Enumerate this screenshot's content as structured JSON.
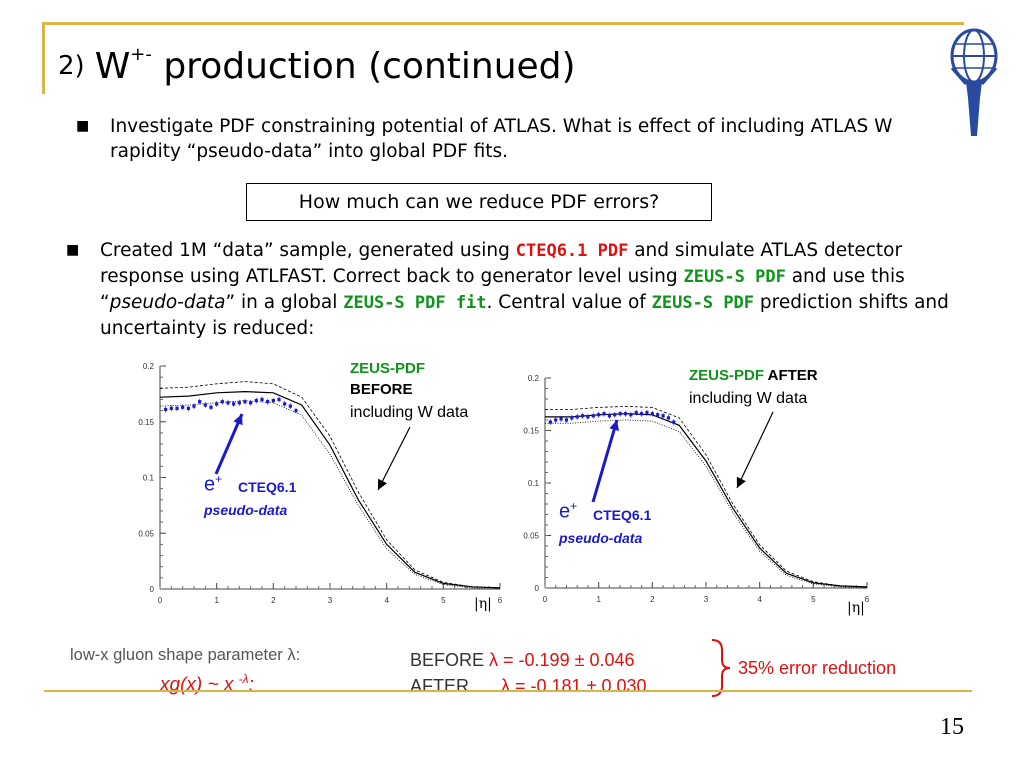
{
  "title": {
    "number": "2)",
    "main": "W",
    "superscript": "+-",
    "rest": "production (continued)"
  },
  "bullets": [
    {
      "text": "Investigate PDF constraining potential of ATLAS. What is effect of including ATLAS W rapidity “pseudo-data” into global PDF fits."
    },
    {
      "parts": {
        "p1": "Created 1M “data” sample, generated using ",
        "cteq": "CTEQ6.1 PDF",
        "p2": " and simulate ATLAS detector response using ATLFAST. Correct back to generator level using ",
        "zeus1": "ZEUS-S PDF",
        "p3": " and use this “",
        "pseudo": "pseudo-data",
        "p4": "”  in a global ",
        "zeus2": "ZEUS-S PDF fit",
        "p5": ".  Central value of ",
        "zeus3": "ZEUS-S PDF",
        "p6": " prediction shifts and uncertainty is reduced:"
      }
    }
  ],
  "question": "How much can we reduce PDF errors?",
  "plot_left": {
    "ann_zeus": "ZEUS-PDF",
    "ann_state": "BEFORE",
    "ann_incl": "including W data",
    "ann_e": "e",
    "ann_e_sup": "+",
    "ann_cteq": "CTEQ6.1",
    "ann_pseudo": "pseudo-data",
    "xlabel": "|η|",
    "yticks": [
      "0",
      "0.05",
      "0.1",
      "0.15",
      "0.2"
    ],
    "xticks": [
      "0",
      "1",
      "2",
      "3",
      "4",
      "5",
      "6"
    ]
  },
  "plot_right": {
    "ann_zeus": "ZEUS-PDF",
    "ann_state": "AFTER",
    "ann_incl": "including W data",
    "ann_e": "e",
    "ann_e_sup": "+",
    "ann_cteq": "CTEQ6.1",
    "ann_pseudo": "pseudo-data",
    "xlabel": "|η|",
    "yticks": [
      "0",
      "0.05",
      "0.1",
      "0.15",
      "0.2"
    ],
    "xticks": [
      "0",
      "1",
      "2",
      "3",
      "4",
      "5",
      "6"
    ]
  },
  "chart_data": [
    {
      "type": "line",
      "xlim": [
        0,
        6
      ],
      "ylim": [
        0,
        0.2
      ],
      "x": [
        0,
        0.5,
        1,
        1.5,
        2,
        2.5,
        3,
        3.5,
        4,
        4.5,
        5,
        5.5,
        6
      ],
      "series": [
        {
          "values": [
            0.172,
            0.173,
            0.176,
            0.177,
            0.176,
            0.165,
            0.129,
            0.08,
            0.04,
            0.015,
            0.005,
            0.002,
            0.001
          ]
        },
        {
          "values": [
            0.164,
            0.165,
            0.167,
            0.169,
            0.167,
            0.156,
            0.121,
            0.075,
            0.036,
            0.013,
            0.004,
            0.001,
            0.0
          ]
        },
        {
          "values": [
            0.18,
            0.181,
            0.184,
            0.186,
            0.184,
            0.172,
            0.137,
            0.087,
            0.044,
            0.017,
            0.006,
            0.002,
            0.001
          ]
        }
      ],
      "points": {
        "x": [
          0.1,
          0.2,
          0.3,
          0.4,
          0.5,
          0.6,
          0.7,
          0.8,
          0.9,
          1.0,
          1.1,
          1.2,
          1.3,
          1.4,
          1.5,
          1.6,
          1.7,
          1.8,
          1.9,
          2.0,
          2.1,
          2.2,
          2.3,
          2.4
        ],
        "y": [
          0.161,
          0.162,
          0.162,
          0.163,
          0.162,
          0.164,
          0.168,
          0.165,
          0.163,
          0.166,
          0.168,
          0.167,
          0.166,
          0.167,
          0.168,
          0.167,
          0.169,
          0.17,
          0.168,
          0.169,
          0.17,
          0.166,
          0.164,
          0.16
        ]
      }
    },
    {
      "type": "line",
      "xlim": [
        0,
        6
      ],
      "ylim": [
        0,
        0.2
      ],
      "x": [
        0,
        0.5,
        1,
        1.5,
        2,
        2.5,
        3,
        3.5,
        4,
        4.5,
        5,
        5.5,
        6
      ],
      "series": [
        {
          "values": [
            0.163,
            0.163,
            0.165,
            0.166,
            0.165,
            0.155,
            0.121,
            0.076,
            0.038,
            0.014,
            0.005,
            0.002,
            0.001
          ]
        },
        {
          "values": [
            0.157,
            0.157,
            0.159,
            0.16,
            0.159,
            0.149,
            0.116,
            0.072,
            0.035,
            0.012,
            0.004,
            0.001,
            0.0
          ]
        },
        {
          "values": [
            0.17,
            0.17,
            0.172,
            0.173,
            0.172,
            0.162,
            0.127,
            0.08,
            0.041,
            0.016,
            0.006,
            0.002,
            0.001
          ]
        }
      ],
      "points": {
        "x": [
          0.1,
          0.2,
          0.3,
          0.4,
          0.5,
          0.6,
          0.7,
          0.8,
          0.9,
          1.0,
          1.1,
          1.2,
          1.3,
          1.4,
          1.5,
          1.6,
          1.7,
          1.8,
          1.9,
          2.0,
          2.1,
          2.2,
          2.3,
          2.4
        ],
        "y": [
          0.158,
          0.16,
          0.161,
          0.16,
          0.162,
          0.163,
          0.164,
          0.163,
          0.164,
          0.165,
          0.166,
          0.164,
          0.165,
          0.166,
          0.166,
          0.165,
          0.167,
          0.166,
          0.167,
          0.166,
          0.165,
          0.164,
          0.162,
          0.158
        ]
      }
    }
  ],
  "footer": {
    "gluon_label": "low-x gluon shape parameter λ:",
    "formula": "xg(x) ~ x ",
    "formula_exp": "-λ",
    "formula_end": ":",
    "before_label": "BEFORE",
    "before_value": "λ = -0.199 ± 0.046",
    "after_label": "AFTER",
    "after_value": "λ = -0.181 ± 0.030",
    "reduction": "35% error reduction"
  },
  "page_number": "15",
  "colors": {
    "accent": "#d9b44a",
    "green": "#11941c",
    "red": "#e01010",
    "blue": "#1a1acc"
  }
}
